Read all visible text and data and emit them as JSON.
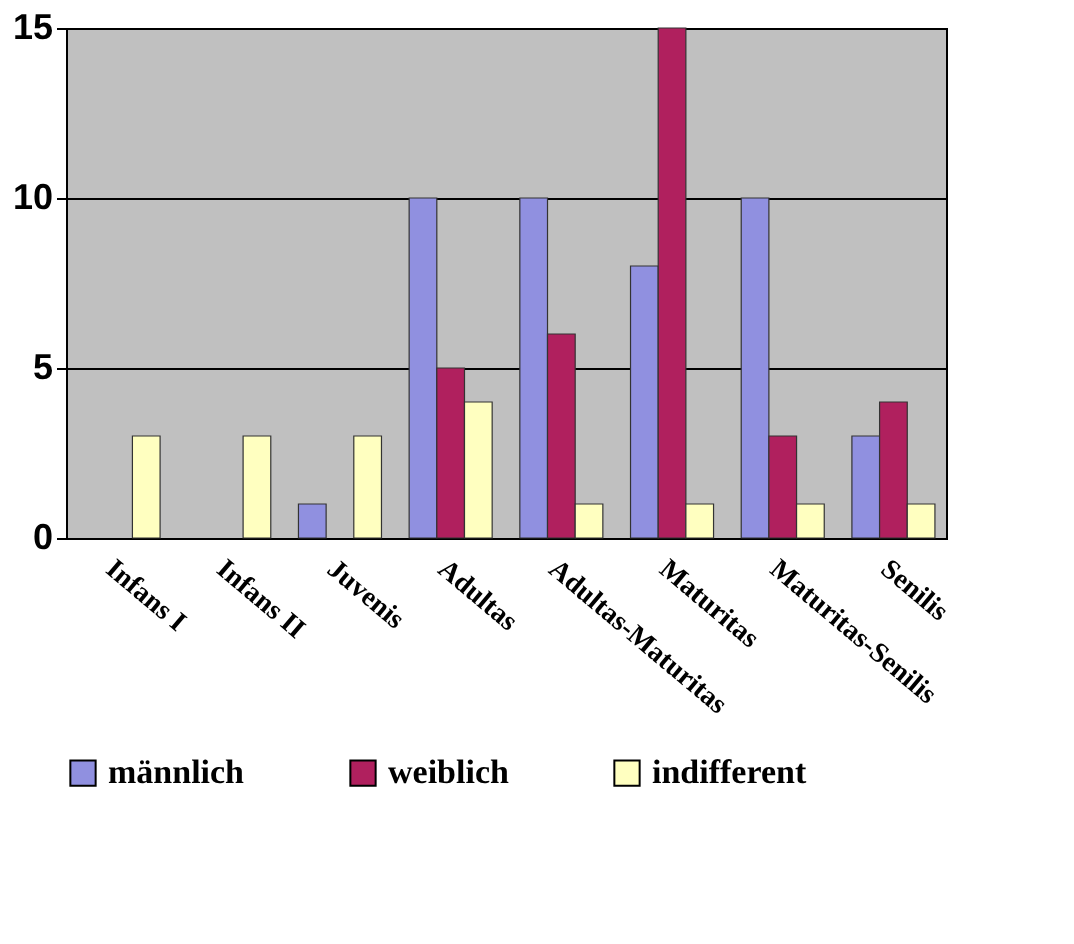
{
  "chart_data": {
    "type": "bar",
    "categories": [
      "Infans I",
      "Infans II",
      "Juvenis",
      "Adultas",
      "Adultas-Maturitas",
      "Maturitas",
      "Maturitas-Senilis",
      "Senilis"
    ],
    "series": [
      {
        "name": "männlich",
        "color": "#9090e0",
        "values": [
          0,
          0,
          1,
          10,
          10,
          8,
          10,
          3
        ]
      },
      {
        "name": "weiblich",
        "color": "#b0205e",
        "values": [
          0,
          0,
          0,
          5,
          6,
          15,
          3,
          4
        ]
      },
      {
        "name": "indifferent",
        "color": "#ffffc0",
        "values": [
          3,
          3,
          3,
          4,
          1,
          1,
          1,
          1
        ]
      }
    ],
    "ylim": [
      0,
      15
    ],
    "yticks": [
      0,
      5,
      10,
      15
    ],
    "grid": "y",
    "legend": "bottom"
  }
}
